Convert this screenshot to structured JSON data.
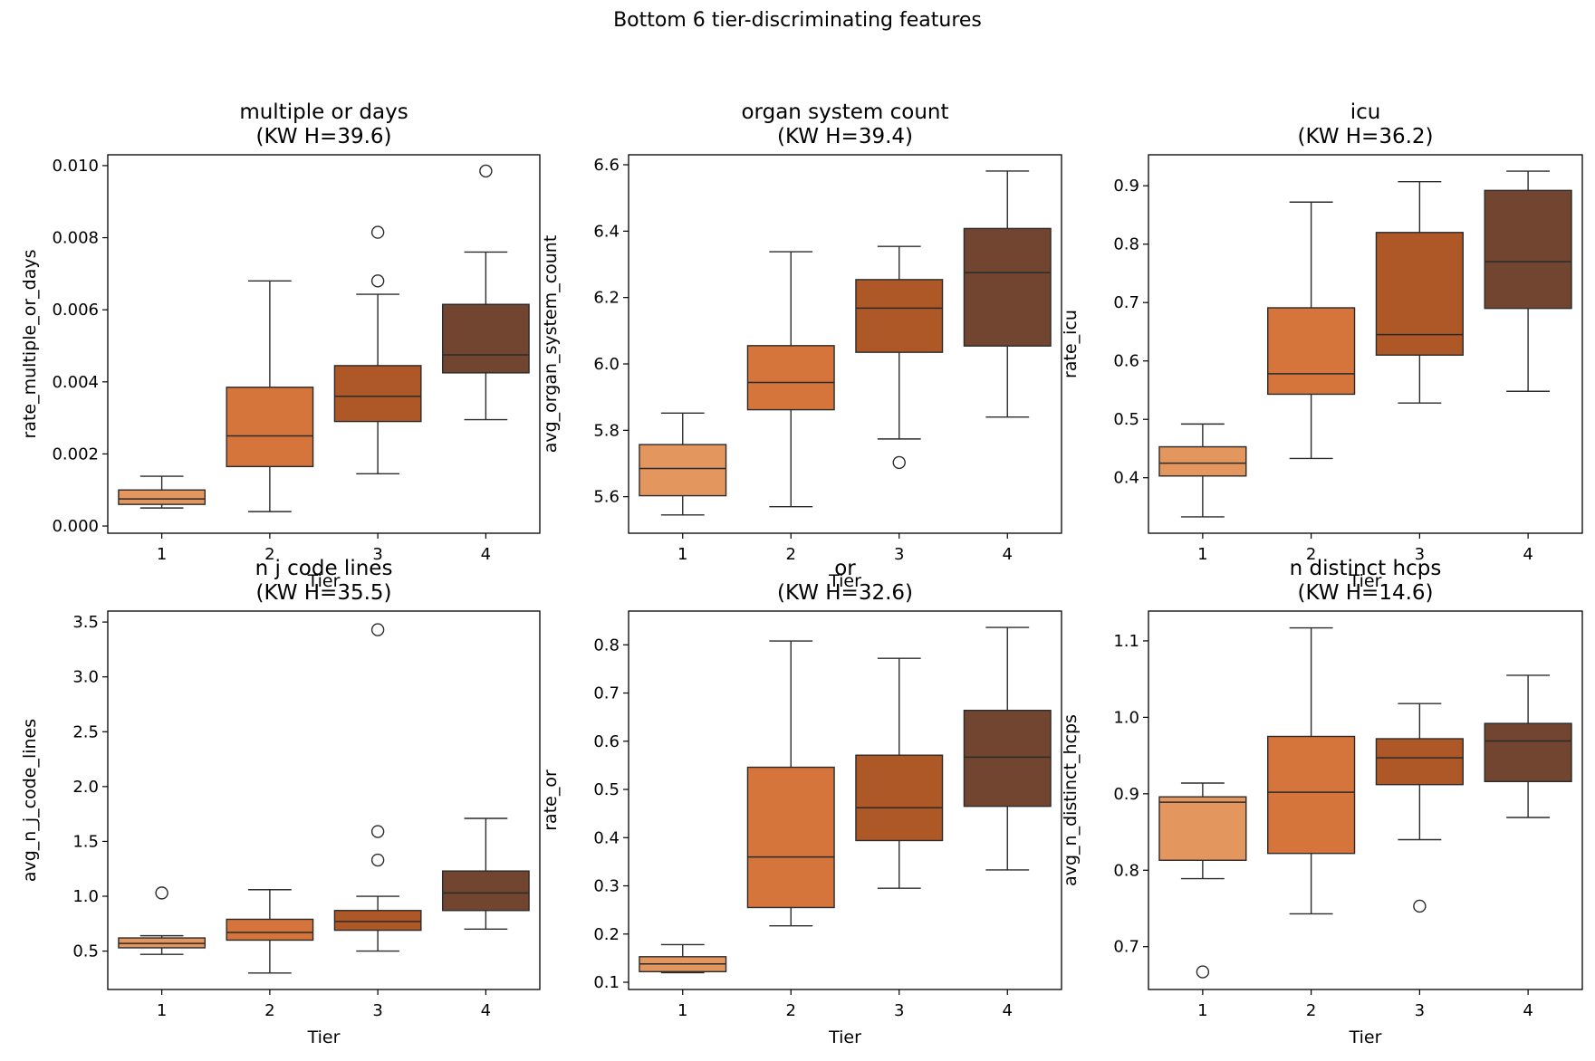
{
  "figure": {
    "suptitle": "Bottom 6 tier-discriminating features"
  },
  "colors": {
    "tier_1": "#e4965f",
    "tier_2": "#d5743b",
    "tier_3": "#ae5727",
    "tier_4": "#714530",
    "line": "#2b2b2b"
  },
  "chart_data": [
    {
      "type": "box",
      "title_line1": "multiple or days",
      "title_line2": "(KW H=39.6)",
      "xlabel": "Tier",
      "ylabel": "rate_multiple_or_days",
      "categories": [
        "1",
        "2",
        "3",
        "4"
      ],
      "ylim": [
        -0.0002,
        0.0103
      ],
      "yticks": [
        0.0,
        0.002,
        0.004,
        0.006,
        0.008,
        0.01
      ],
      "ytick_labels": [
        "0.000",
        "0.002",
        "0.004",
        "0.006",
        "0.008",
        "0.010"
      ],
      "boxes": [
        {
          "tier": "1",
          "whislo": 0.0005,
          "q1": 0.0006,
          "med": 0.00075,
          "q3": 0.001,
          "whishi": 0.00138,
          "fliers": []
        },
        {
          "tier": "2",
          "whislo": 0.0004,
          "q1": 0.00165,
          "med": 0.0025,
          "q3": 0.00385,
          "whishi": 0.0068,
          "fliers": []
        },
        {
          "tier": "3",
          "whislo": 0.00145,
          "q1": 0.0029,
          "med": 0.0036,
          "q3": 0.00445,
          "whishi": 0.00643,
          "fliers": [
            0.0068,
            0.00815
          ]
        },
        {
          "tier": "4",
          "whislo": 0.00295,
          "q1": 0.00425,
          "med": 0.00475,
          "q3": 0.00615,
          "whishi": 0.0076,
          "fliers": [
            0.00985
          ]
        }
      ]
    },
    {
      "type": "box",
      "title_line1": "organ system count",
      "title_line2": "(KW H=39.4)",
      "xlabel": "Tier",
      "ylabel": "avg_organ_system_count",
      "categories": [
        "1",
        "2",
        "3",
        "4"
      ],
      "ylim": [
        5.49,
        6.63
      ],
      "yticks": [
        5.6,
        5.8,
        6.0,
        6.2,
        6.4,
        6.6
      ],
      "ytick_labels": [
        "5.6",
        "5.8",
        "6.0",
        "6.2",
        "6.4",
        "6.6"
      ],
      "boxes": [
        {
          "tier": "1",
          "whislo": 5.545,
          "q1": 5.603,
          "med": 5.685,
          "q3": 5.757,
          "whishi": 5.852,
          "fliers": []
        },
        {
          "tier": "2",
          "whislo": 5.57,
          "q1": 5.862,
          "med": 5.944,
          "q3": 6.055,
          "whishi": 6.338,
          "fliers": []
        },
        {
          "tier": "3",
          "whislo": 5.774,
          "q1": 6.035,
          "med": 6.168,
          "q3": 6.254,
          "whishi": 6.354,
          "fliers": [
            5.703
          ]
        },
        {
          "tier": "4",
          "whislo": 5.84,
          "q1": 6.054,
          "med": 6.275,
          "q3": 6.408,
          "whishi": 6.581,
          "fliers": []
        }
      ]
    },
    {
      "type": "box",
      "title_line1": "icu",
      "title_line2": "(KW H=36.2)",
      "xlabel": "Tier",
      "ylabel": "rate_icu",
      "categories": [
        "1",
        "2",
        "3",
        "4"
      ],
      "ylim": [
        0.305,
        0.953
      ],
      "yticks": [
        0.4,
        0.5,
        0.6,
        0.7,
        0.8,
        0.9
      ],
      "ytick_labels": [
        "0.4",
        "0.5",
        "0.6",
        "0.7",
        "0.8",
        "0.9"
      ],
      "boxes": [
        {
          "tier": "1",
          "whislo": 0.333,
          "q1": 0.403,
          "med": 0.425,
          "q3": 0.453,
          "whishi": 0.492,
          "fliers": []
        },
        {
          "tier": "2",
          "whislo": 0.433,
          "q1": 0.543,
          "med": 0.578,
          "q3": 0.691,
          "whishi": 0.872,
          "fliers": []
        },
        {
          "tier": "3",
          "whislo": 0.528,
          "q1": 0.61,
          "med": 0.645,
          "q3": 0.82,
          "whishi": 0.907,
          "fliers": []
        },
        {
          "tier": "4",
          "whislo": 0.548,
          "q1": 0.69,
          "med": 0.77,
          "q3": 0.892,
          "whishi": 0.925,
          "fliers": []
        }
      ]
    },
    {
      "type": "box",
      "title_line1": "n j code lines",
      "title_line2": "(KW H=35.5)",
      "xlabel": "Tier",
      "ylabel": "avg_n_j_code_lines",
      "categories": [
        "1",
        "2",
        "3",
        "4"
      ],
      "ylim": [
        0.15,
        3.6
      ],
      "yticks": [
        0.5,
        1.0,
        1.5,
        2.0,
        2.5,
        3.0,
        3.5
      ],
      "ytick_labels": [
        "0.5",
        "1.0",
        "1.5",
        "2.0",
        "2.5",
        "3.0",
        "3.5"
      ],
      "boxes": [
        {
          "tier": "1",
          "whislo": 0.47,
          "q1": 0.53,
          "med": 0.57,
          "q3": 0.62,
          "whishi": 0.64,
          "fliers": [
            1.03
          ]
        },
        {
          "tier": "2",
          "whislo": 0.3,
          "q1": 0.6,
          "med": 0.67,
          "q3": 0.79,
          "whishi": 1.06,
          "fliers": []
        },
        {
          "tier": "3",
          "whislo": 0.5,
          "q1": 0.69,
          "med": 0.77,
          "q3": 0.87,
          "whishi": 1.0,
          "fliers": [
            1.33,
            1.59,
            3.43
          ]
        },
        {
          "tier": "4",
          "whislo": 0.7,
          "q1": 0.87,
          "med": 1.03,
          "q3": 1.23,
          "whishi": 1.71,
          "fliers": []
        }
      ]
    },
    {
      "type": "box",
      "title_line1": "or",
      "title_line2": "(KW H=32.6)",
      "xlabel": "Tier",
      "ylabel": "rate_or",
      "categories": [
        "1",
        "2",
        "3",
        "4"
      ],
      "ylim": [
        0.085,
        0.87
      ],
      "yticks": [
        0.1,
        0.2,
        0.3,
        0.4,
        0.5,
        0.6,
        0.7,
        0.8
      ],
      "ytick_labels": [
        "0.1",
        "0.2",
        "0.3",
        "0.4",
        "0.5",
        "0.6",
        "0.7",
        "0.8"
      ],
      "boxes": [
        {
          "tier": "1",
          "whislo": 0.12,
          "q1": 0.122,
          "med": 0.138,
          "q3": 0.153,
          "whishi": 0.178,
          "fliers": []
        },
        {
          "tier": "2",
          "whislo": 0.217,
          "q1": 0.255,
          "med": 0.36,
          "q3": 0.546,
          "whishi": 0.808,
          "fliers": []
        },
        {
          "tier": "3",
          "whislo": 0.295,
          "q1": 0.394,
          "med": 0.462,
          "q3": 0.571,
          "whishi": 0.772,
          "fliers": []
        },
        {
          "tier": "4",
          "whislo": 0.333,
          "q1": 0.465,
          "med": 0.567,
          "q3": 0.664,
          "whishi": 0.836,
          "fliers": []
        }
      ]
    },
    {
      "type": "box",
      "title_line1": "n distinct hcps",
      "title_line2": "(KW H=14.6)",
      "xlabel": "Tier",
      "ylabel": "avg_n_distinct_hcps",
      "categories": [
        "1",
        "2",
        "3",
        "4"
      ],
      "ylim": [
        0.644,
        1.139
      ],
      "yticks": [
        0.7,
        0.8,
        0.9,
        1.0,
        1.1
      ],
      "ytick_labels": [
        "0.7",
        "0.8",
        "0.9",
        "1.0",
        "1.1"
      ],
      "boxes": [
        {
          "tier": "1",
          "whislo": 0.789,
          "q1": 0.813,
          "med": 0.889,
          "q3": 0.896,
          "whishi": 0.914,
          "fliers": [
            0.667
          ]
        },
        {
          "tier": "2",
          "whislo": 0.743,
          "q1": 0.822,
          "med": 0.902,
          "q3": 0.975,
          "whishi": 1.117,
          "fliers": []
        },
        {
          "tier": "3",
          "whislo": 0.84,
          "q1": 0.912,
          "med": 0.947,
          "q3": 0.972,
          "whishi": 1.018,
          "fliers": [
            0.753
          ]
        },
        {
          "tier": "4",
          "whislo": 0.869,
          "q1": 0.916,
          "med": 0.969,
          "q3": 0.992,
          "whishi": 1.055,
          "fliers": []
        }
      ]
    }
  ]
}
